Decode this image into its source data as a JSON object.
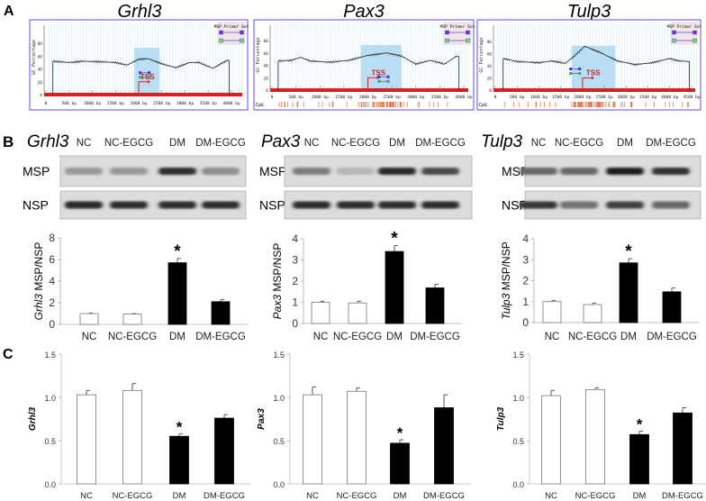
{
  "panel_labels": {
    "a": "A",
    "b": "B",
    "c": "C"
  },
  "genes": [
    "Grhl3",
    "Pax3",
    "Tulp3"
  ],
  "groups": [
    "NC",
    "NC-EGCG",
    "DM",
    "DM-EGCG"
  ],
  "gel": {
    "msp_label": "MSP",
    "nsp_label": "NSP"
  },
  "profile_common": {
    "ylabel": "GC Percentage",
    "legend_title": "MSP Primer Set",
    "tss_label": "TSS",
    "cpg_label": "CpG",
    "y_ticks": [
      "0",
      "20",
      "40",
      "60",
      "80"
    ]
  },
  "chart_data": [
    {
      "id": "A-Grhl3",
      "type": "line",
      "title": "Grhl3",
      "xlim": [
        0,
        4000
      ],
      "ylim": [
        0,
        80
      ],
      "x_ticks": [
        "0",
        "500 bp",
        "1000 bp",
        "1500 bp",
        "2000 bp",
        "2500 bp",
        "3000 bp",
        "3500 bp",
        "4000 bp"
      ],
      "cpg_track": false,
      "tss": 2000,
      "island": [
        1900,
        2450
      ],
      "gc_profile": [
        [
          150,
          0
        ],
        [
          150,
          52
        ],
        [
          500,
          50
        ],
        [
          800,
          52
        ],
        [
          1200,
          51
        ],
        [
          1500,
          50
        ],
        [
          1750,
          46
        ],
        [
          2000,
          55
        ],
        [
          2200,
          56
        ],
        [
          2500,
          48
        ],
        [
          2800,
          42
        ],
        [
          3100,
          50
        ],
        [
          3300,
          50
        ],
        [
          3600,
          41
        ],
        [
          3900,
          53
        ],
        [
          3950,
          53
        ],
        [
          3950,
          0
        ]
      ]
    },
    {
      "id": "A-Pax3",
      "type": "line",
      "title": "Pax3",
      "xlim": [
        0,
        4000
      ],
      "ylim": [
        0,
        80
      ],
      "x_ticks": [
        "0",
        "500 bp",
        "1000 bp",
        "1500 bp",
        "2000 bp",
        "2500 bp",
        "3000 bp",
        "3500 bp",
        "4000 bp"
      ],
      "cpg_track": true,
      "tss": 2000,
      "island": [
        1850,
        2700
      ],
      "gc_profile": [
        [
          130,
          0
        ],
        [
          130,
          47
        ],
        [
          400,
          48
        ],
        [
          600,
          53
        ],
        [
          800,
          47
        ],
        [
          1200,
          45
        ],
        [
          1600,
          48
        ],
        [
          2000,
          56
        ],
        [
          2400,
          60
        ],
        [
          2700,
          55
        ],
        [
          3000,
          42
        ],
        [
          3300,
          48
        ],
        [
          3600,
          42
        ],
        [
          3850,
          55
        ],
        [
          3900,
          53
        ],
        [
          3900,
          0
        ]
      ]
    },
    {
      "id": "A-Tulp3",
      "type": "line",
      "title": "Tulp3",
      "xlim": [
        0,
        4500
      ],
      "ylim": [
        0,
        80
      ],
      "x_ticks": [
        "0",
        "500 bp",
        "1000 bp",
        "1500 bp",
        "2000 bp",
        "2500 bp",
        "3000 bp",
        "3500 bp",
        "4000 bp",
        "4500 bp"
      ],
      "cpg_track": true,
      "tss": 2000,
      "island": [
        1750,
        2750
      ],
      "gc_profile": [
        [
          180,
          0
        ],
        [
          180,
          52
        ],
        [
          500,
          47
        ],
        [
          1000,
          45
        ],
        [
          1300,
          48
        ],
        [
          1600,
          44
        ],
        [
          1800,
          55
        ],
        [
          2050,
          72
        ],
        [
          2400,
          62
        ],
        [
          2800,
          48
        ],
        [
          3200,
          42
        ],
        [
          3600,
          45
        ],
        [
          4000,
          52
        ],
        [
          4200,
          48
        ],
        [
          4450,
          47
        ],
        [
          4450,
          0
        ]
      ]
    },
    {
      "id": "B-Grhl3",
      "type": "bar",
      "gene": "Grhl3",
      "ylabel_suffix": " MSP/NSP",
      "ylim": [
        0,
        8
      ],
      "y_ticks": [
        "0",
        "2",
        "4",
        "6",
        "8"
      ],
      "categories": [
        "NC",
        "NC-EGCG",
        "DM",
        "DM-EGCG"
      ],
      "values": [
        1.0,
        0.95,
        5.7,
        2.1
      ],
      "errors": [
        0.05,
        0.05,
        0.4,
        0.2
      ],
      "significance": [
        "",
        "",
        "*",
        ""
      ]
    },
    {
      "id": "B-Pax3",
      "type": "bar",
      "gene": "Pax3",
      "ylabel_suffix": " MSP/NSP",
      "ylim": [
        0,
        4
      ],
      "y_ticks": [
        "0",
        "1",
        "2",
        "3",
        "4"
      ],
      "categories": [
        "NC",
        "NC-EGCG",
        "DM",
        "DM-EGCG"
      ],
      "values": [
        1.0,
        0.97,
        3.4,
        1.68
      ],
      "errors": [
        0.05,
        0.08,
        0.28,
        0.17
      ],
      "significance": [
        "",
        "",
        "*",
        ""
      ]
    },
    {
      "id": "B-Tulp3",
      "type": "bar",
      "gene": "Tulp3",
      "ylabel_suffix": " MSP/NSP",
      "ylim": [
        0,
        4
      ],
      "y_ticks": [
        "0",
        "1",
        "2",
        "3",
        "4"
      ],
      "categories": [
        "NC",
        "NC-EGCG",
        "DM",
        "DM-EGCG"
      ],
      "values": [
        1.0,
        0.86,
        2.85,
        1.47
      ],
      "errors": [
        0.06,
        0.07,
        0.2,
        0.18
      ],
      "significance": [
        "",
        "",
        "*",
        ""
      ]
    },
    {
      "id": "C-Grhl3",
      "type": "bar",
      "gene": "Grhl3",
      "ylabel_suffix": "",
      "ylim": [
        0,
        1.5
      ],
      "y_ticks": [
        "0.0",
        "0.5",
        "1.0",
        "1.5"
      ],
      "categories": [
        "NC",
        "NC-EGCG",
        "DM",
        "DM-EGCG"
      ],
      "values": [
        1.03,
        1.08,
        0.55,
        0.76
      ],
      "errors": [
        0.05,
        0.08,
        0.03,
        0.04
      ],
      "significance": [
        "",
        "",
        "*",
        ""
      ]
    },
    {
      "id": "C-Pax3",
      "type": "bar",
      "gene": "Pax3",
      "ylabel_suffix": "",
      "ylim": [
        0,
        1.5
      ],
      "y_ticks": [
        "0.0",
        "0.5",
        "1.0",
        "1.5"
      ],
      "categories": [
        "NC",
        "NC-EGCG",
        "DM",
        "DM-EGCG"
      ],
      "values": [
        1.03,
        1.07,
        0.47,
        0.88
      ],
      "errors": [
        0.09,
        0.04,
        0.04,
        0.15
      ],
      "significance": [
        "",
        "",
        "*",
        ""
      ]
    },
    {
      "id": "C-Tulp3",
      "type": "bar",
      "gene": "Tulp3",
      "ylabel_suffix": "",
      "ylim": [
        0,
        1.5
      ],
      "y_ticks": [
        "0.0",
        "0.5",
        "1.0",
        "1.5"
      ],
      "categories": [
        "NC",
        "NC-EGCG",
        "DM",
        "DM-EGCG"
      ],
      "values": [
        1.02,
        1.09,
        0.57,
        0.82
      ],
      "errors": [
        0.06,
        0.02,
        0.04,
        0.06
      ],
      "significance": [
        "",
        "",
        "*",
        ""
      ]
    }
  ]
}
